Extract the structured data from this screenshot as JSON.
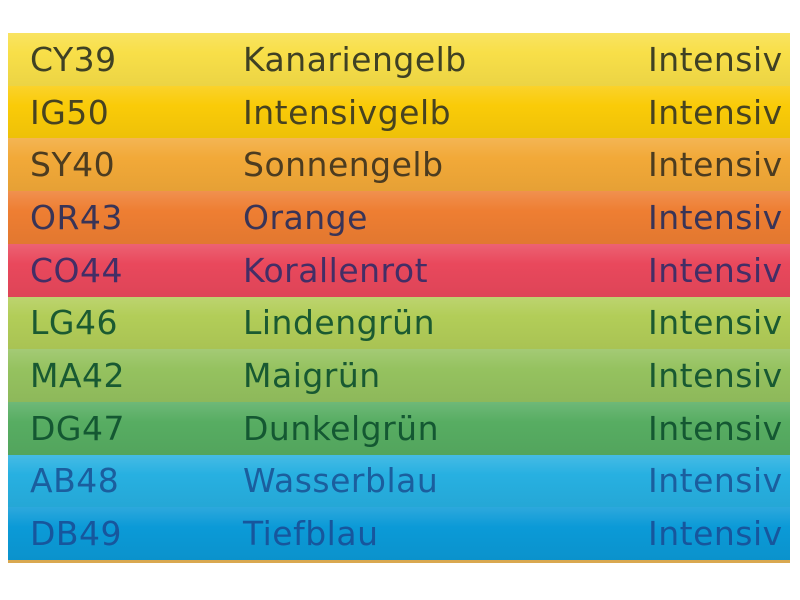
{
  "page": {
    "background": "#ffffff",
    "table_bottom_border_color": "#d9a850"
  },
  "table": {
    "columns": [
      "code",
      "name",
      "intensity"
    ],
    "rows": [
      {
        "code": "CY39",
        "name": "Kanariengelb",
        "intensity": "Intensiv",
        "bg": "#f8df48",
        "fg": "#3f4124"
      },
      {
        "code": "IG50",
        "name": "Intensivgelb",
        "intensity": "Intensiv",
        "bg": "#facb08",
        "fg": "#474321"
      },
      {
        "code": "SY40",
        "name": "Sonnengelb",
        "intensity": "Intensiv",
        "bg": "#f2a938",
        "fg": "#4c3c20"
      },
      {
        "code": "OR43",
        "name": "Orange",
        "intensity": "Intensiv",
        "bg": "#ee7e32",
        "fg": "#393457"
      },
      {
        "code": "CO44",
        "name": "Korallenrot",
        "intensity": "Intensiv",
        "bg": "#e9485c",
        "fg": "#432e66"
      },
      {
        "code": "LG46",
        "name": "Lindengrün",
        "intensity": "Intensiv",
        "bg": "#b2cd58",
        "fg": "#1b5a31"
      },
      {
        "code": "MA42",
        "name": "Maigrün",
        "intensity": "Intensiv",
        "bg": "#95c25f",
        "fg": "#185932"
      },
      {
        "code": "DG47",
        "name": "Dunkelgrün",
        "intensity": "Intensiv",
        "bg": "#57ad62",
        "fg": "#145832"
      },
      {
        "code": "AB48",
        "name": "Wasserblau",
        "intensity": "Intensiv",
        "bg": "#27b0e1",
        "fg": "#1b5e9e"
      },
      {
        "code": "DB49",
        "name": "Tiefblau",
        "intensity": "Intensiv",
        "bg": "#0b9ad7",
        "fg": "#17569d"
      }
    ]
  }
}
